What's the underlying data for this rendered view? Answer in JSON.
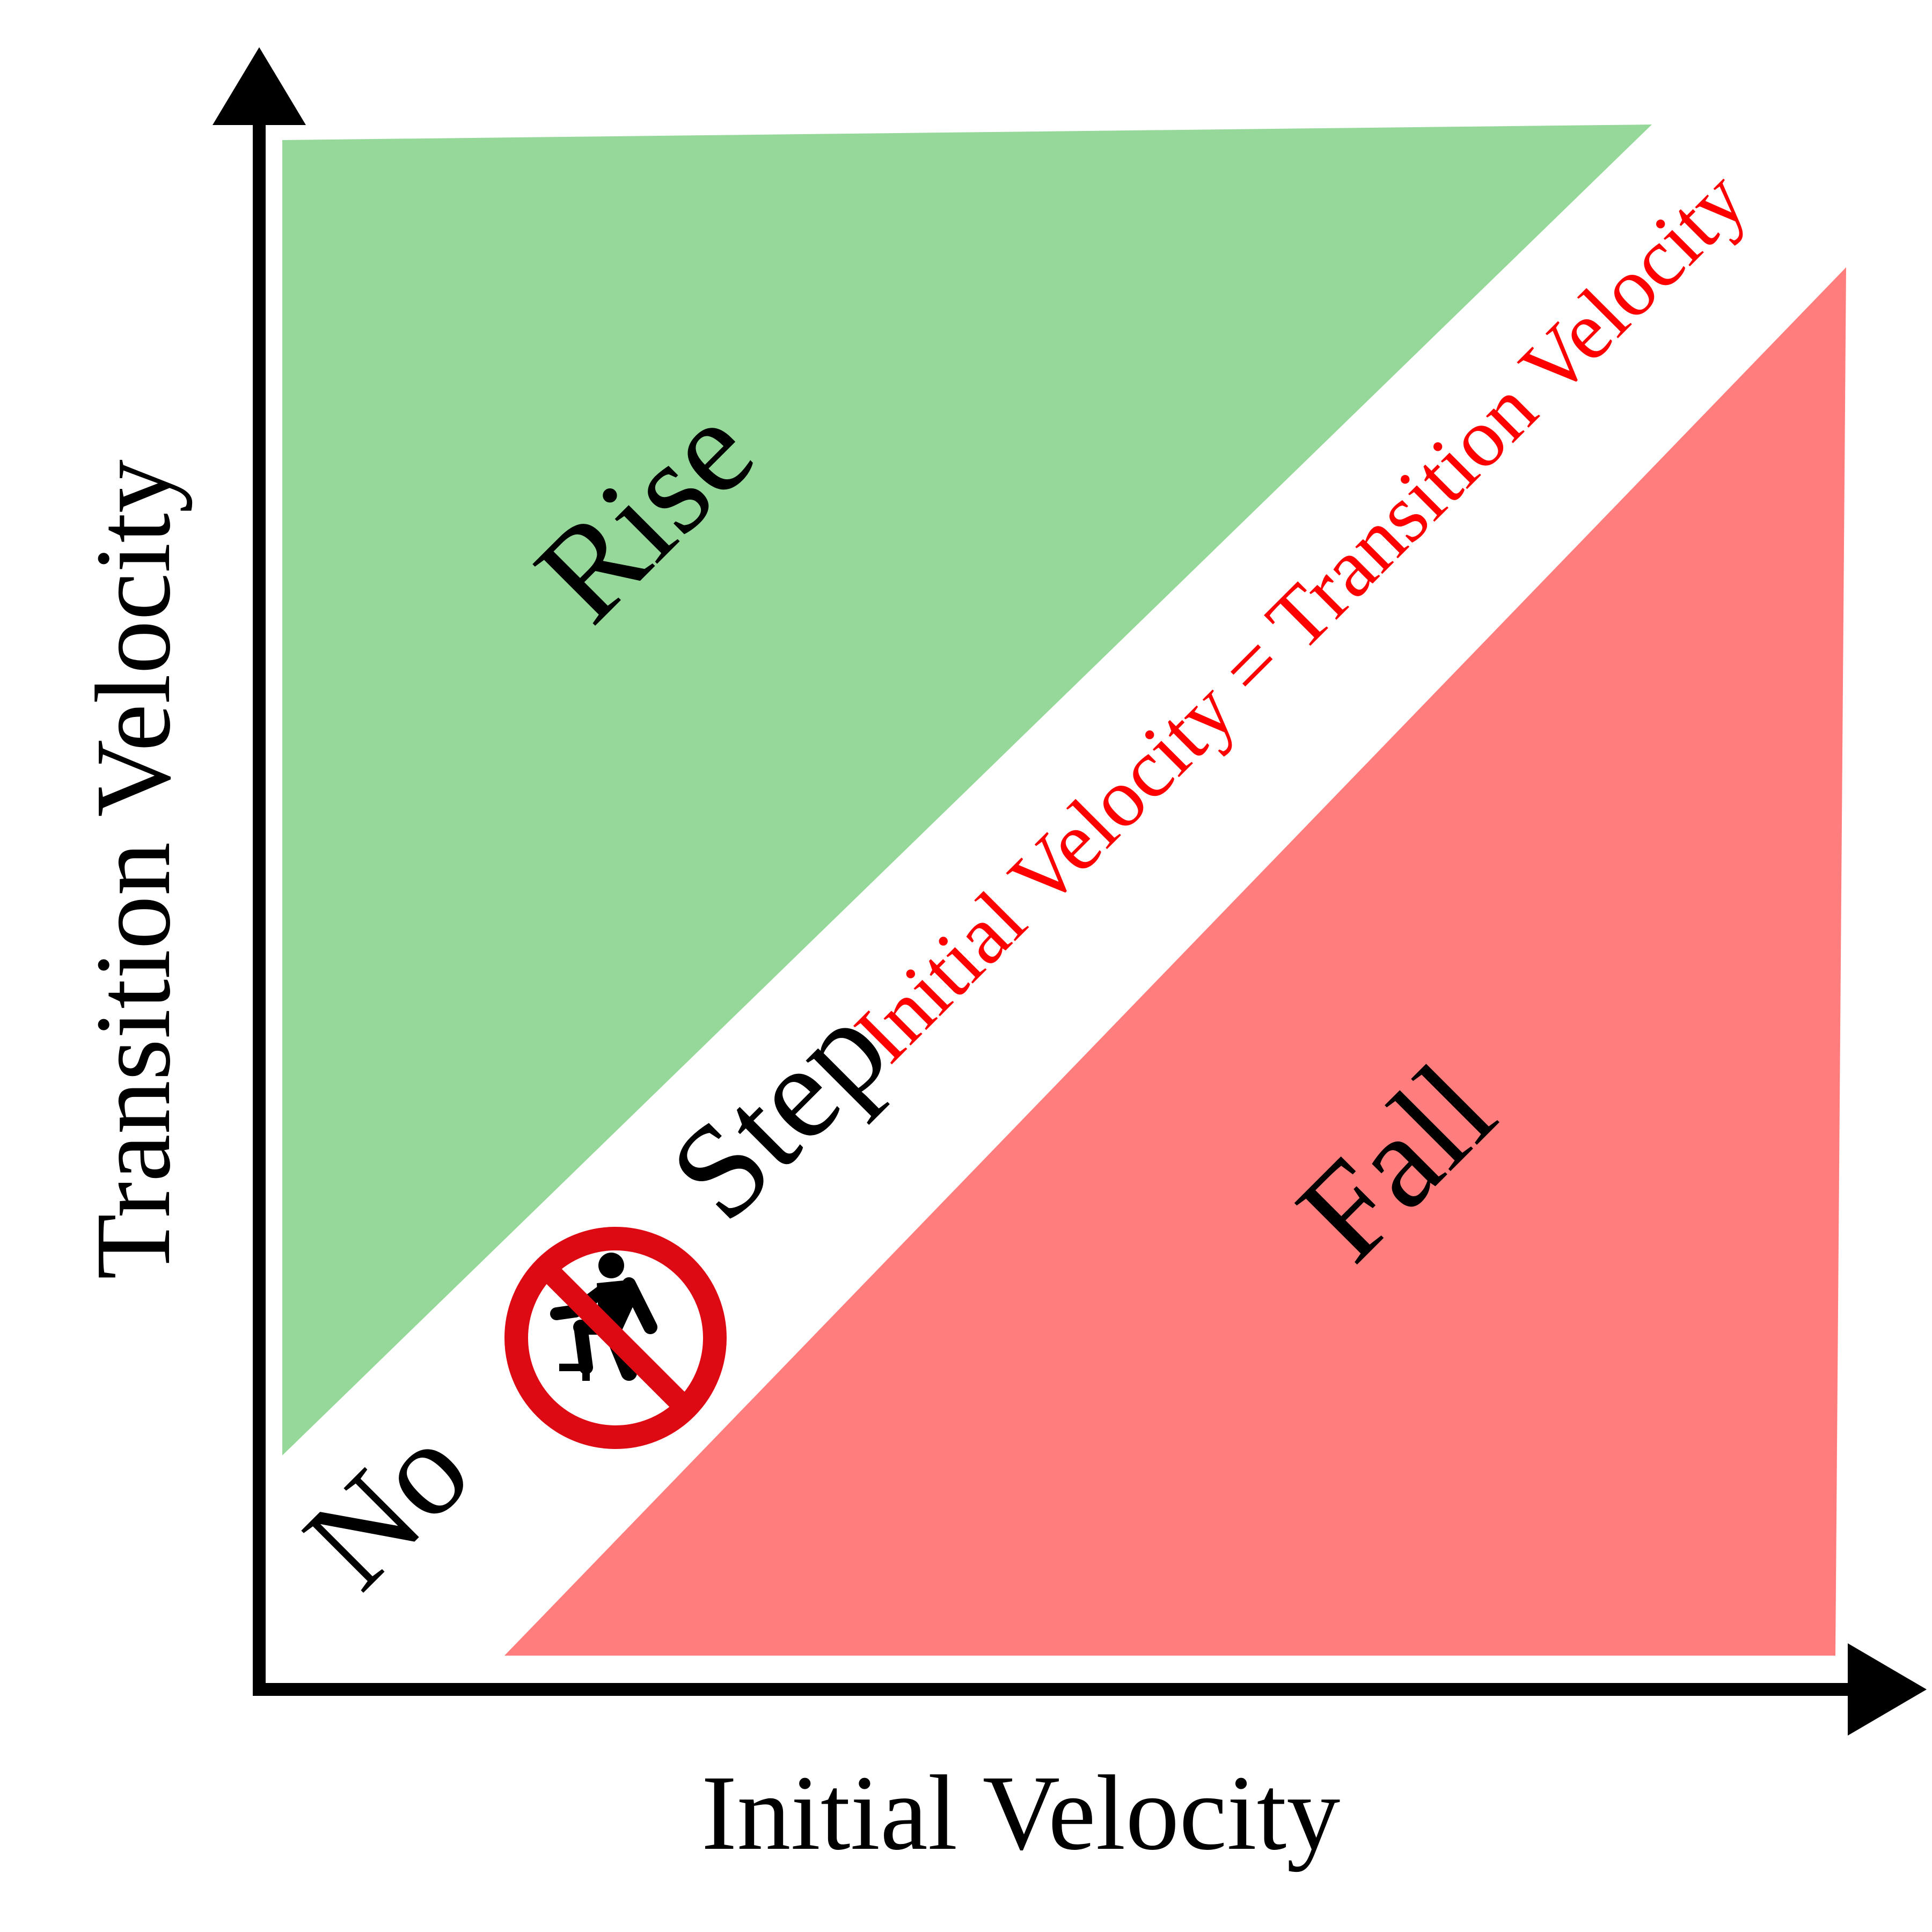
{
  "axes": {
    "x_label": "Initial Velocity",
    "y_label": "Transition Velocity"
  },
  "regions": {
    "rise": {
      "label": "Rise",
      "color": "#95d899"
    },
    "fall": {
      "label": "Fall",
      "color": "#ff7d7c"
    },
    "no_step": {
      "label_left": "No",
      "label_right": "Step",
      "icon": "no-stepping-prohibition-icon",
      "icon_color": "#dd0a14"
    }
  },
  "boundary": {
    "label": "Initial Velocity = Transition Velocity",
    "color": "#ff0000"
  },
  "axis_color": "#000000"
}
